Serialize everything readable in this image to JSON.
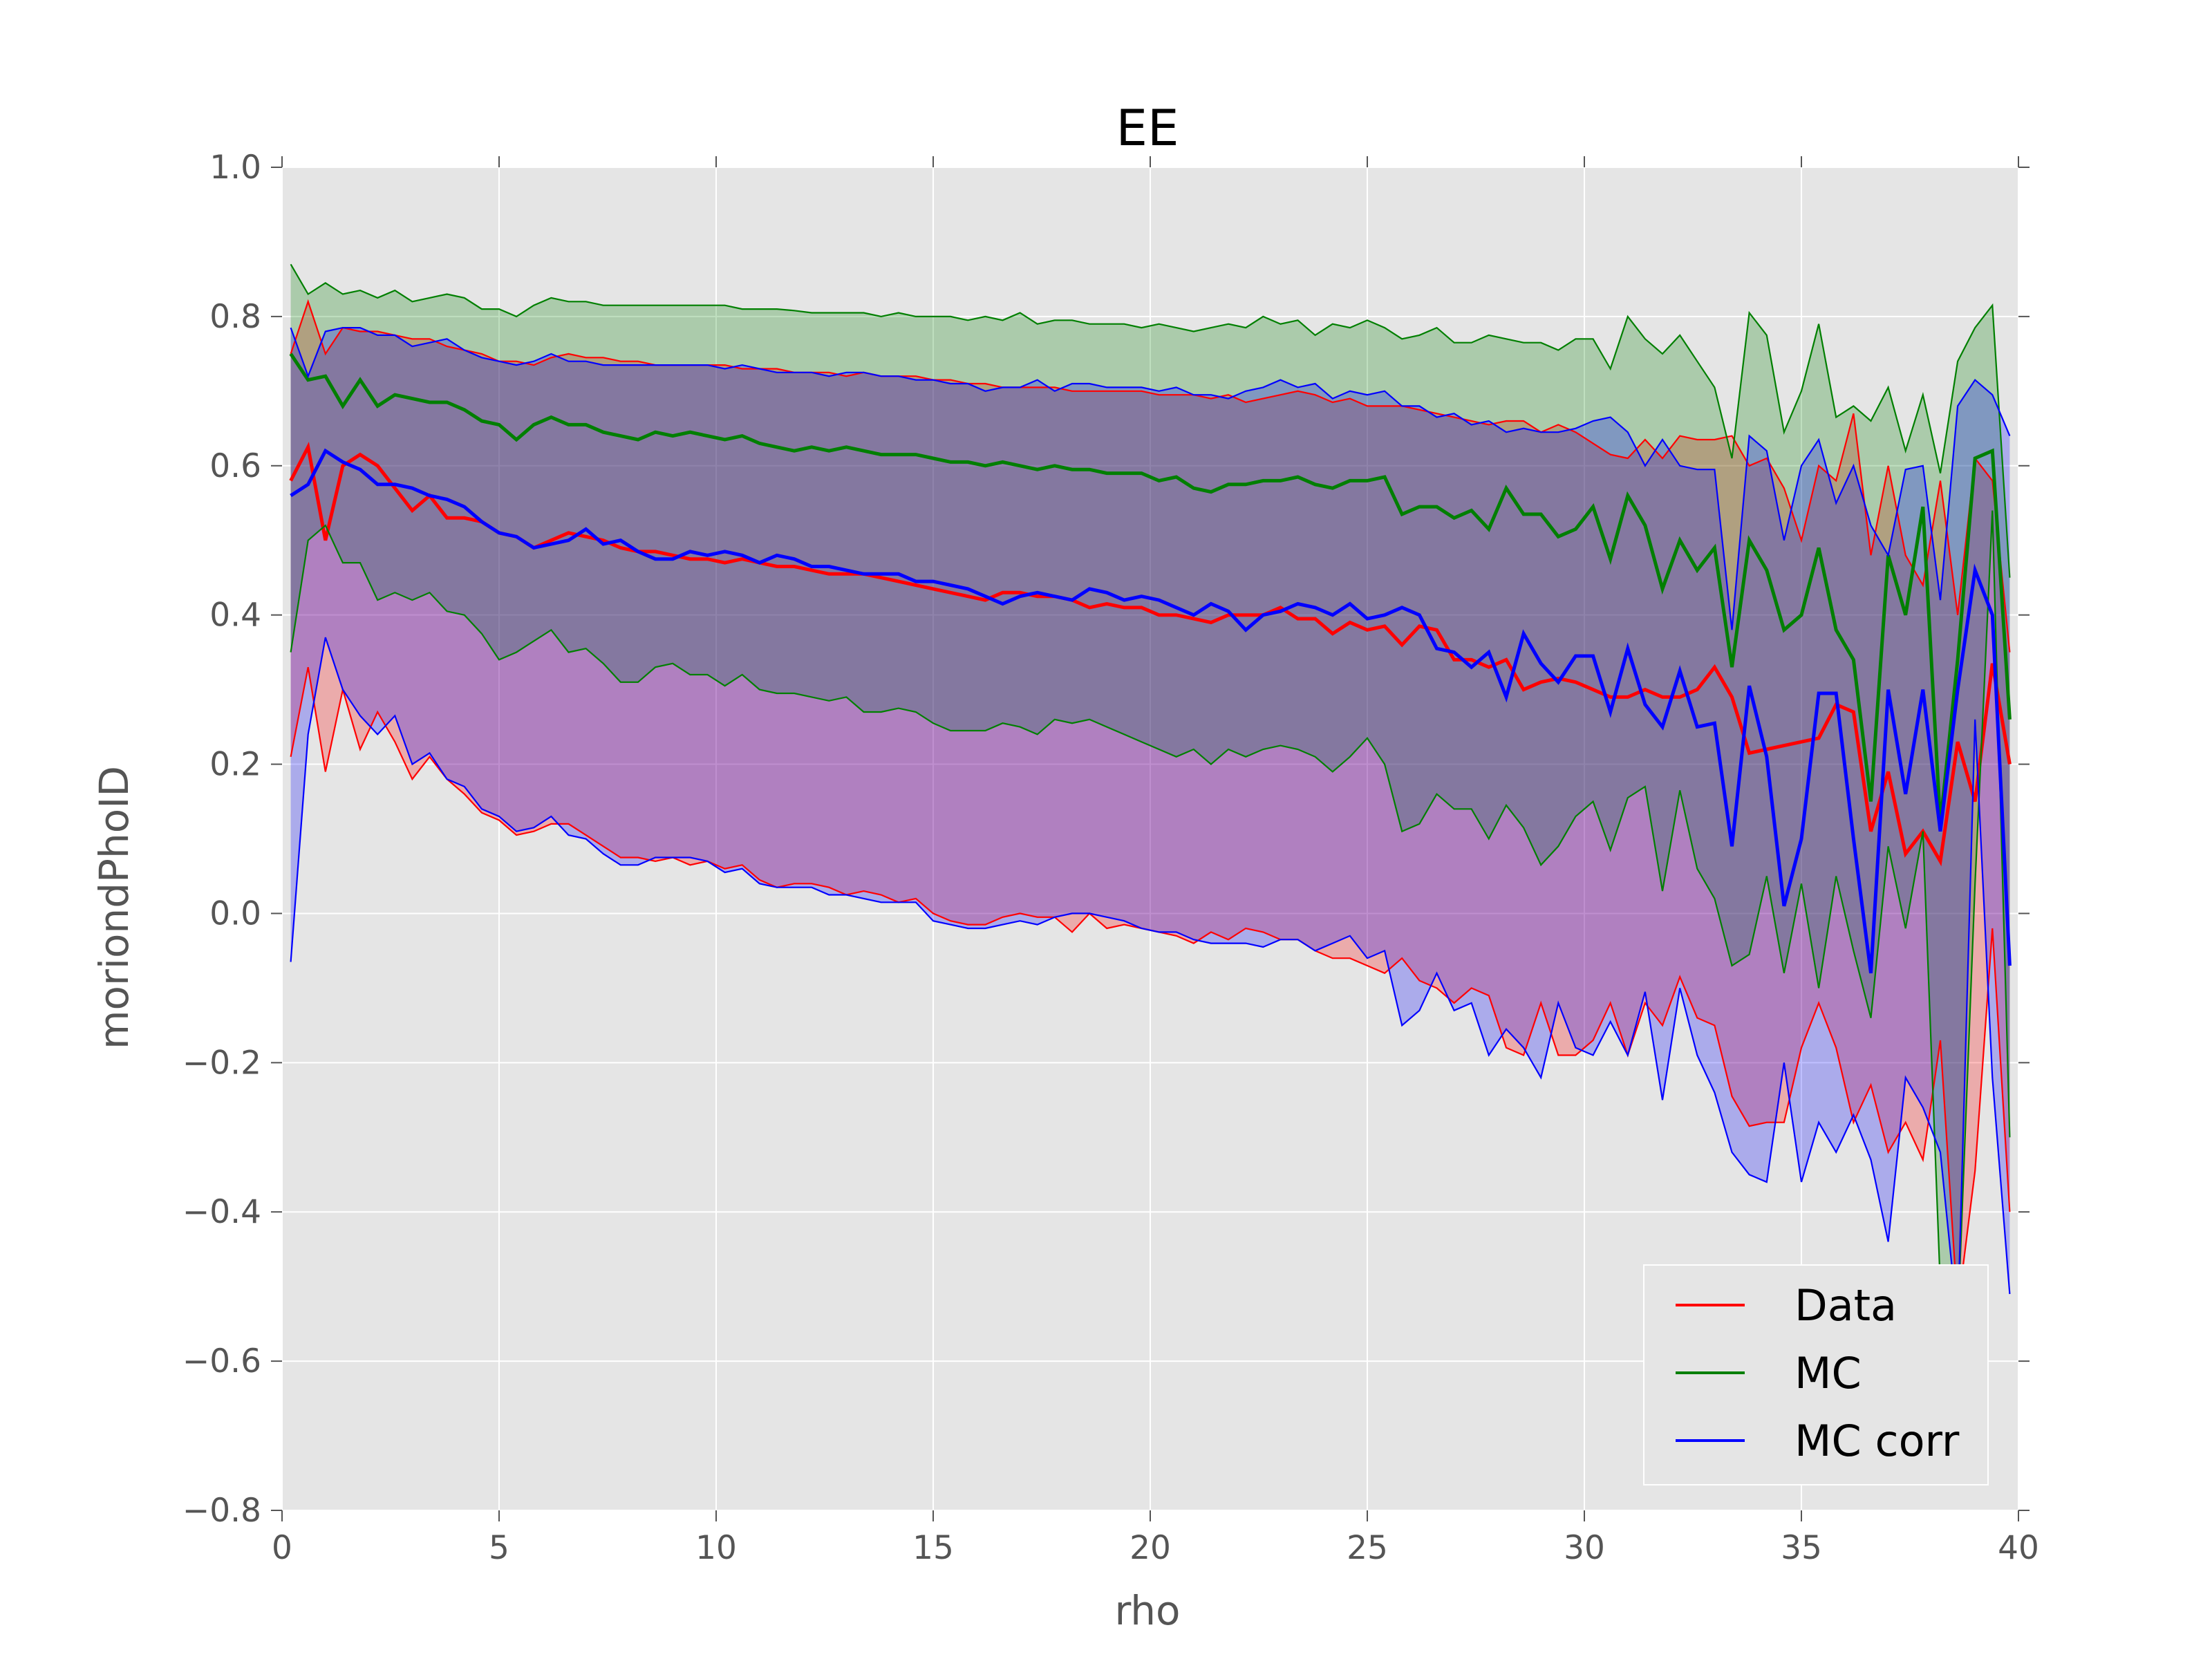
{
  "chart_data": {
    "type": "line",
    "title": "EE",
    "xlabel": "rho",
    "ylabel": "moriondPhoID",
    "xlim": [
      0,
      40
    ],
    "ylim": [
      -0.8,
      1.0
    ],
    "xticks": [
      "0",
      "5",
      "10",
      "15",
      "20",
      "25",
      "30",
      "35",
      "40"
    ],
    "yticks": [
      "−0.8",
      "−0.6",
      "−0.4",
      "−0.2",
      "0.0",
      "0.2",
      "0.4",
      "0.6",
      "0.8",
      "1.0"
    ],
    "grid": true,
    "legend_position": "lower-right",
    "colors": {
      "plot_bg": "#e5e5e5",
      "grid": "#ffffff",
      "Data": "#ff0000",
      "MC": "#007f00",
      "MC corr": "#0000ff"
    },
    "band_description": "Shaded bands span lower to upper quantile for each series",
    "x": [
      0.2,
      0.6,
      1.0,
      1.4,
      1.8,
      2.2,
      2.6,
      3.0,
      3.4,
      3.8,
      4.2,
      4.6,
      5.0,
      5.4,
      5.8,
      6.2,
      6.6,
      7.0,
      7.4,
      7.8,
      8.2,
      8.6,
      9.0,
      9.4,
      9.8,
      10.2,
      10.6,
      11.0,
      11.4,
      11.8,
      12.2,
      12.6,
      13.0,
      13.4,
      13.8,
      14.2,
      14.6,
      15.0,
      15.4,
      15.8,
      16.2,
      16.6,
      17.0,
      17.4,
      17.8,
      18.2,
      18.6,
      19.0,
      19.4,
      19.8,
      20.2,
      20.6,
      21.0,
      21.4,
      21.8,
      22.2,
      22.6,
      23.0,
      23.4,
      23.8,
      24.2,
      24.6,
      25.0,
      25.4,
      25.8,
      26.2,
      26.6,
      27.0,
      27.4,
      27.8,
      28.2,
      28.6,
      29.0,
      29.4,
      29.8,
      30.2,
      30.6,
      31.0,
      31.4,
      31.8,
      32.2,
      32.6,
      33.0,
      33.4,
      33.8,
      34.2,
      34.6,
      35.0,
      35.4,
      35.8,
      36.2,
      36.6,
      37.0,
      37.4,
      37.8,
      38.2,
      38.6,
      39.0,
      39.4,
      39.8
    ],
    "series": [
      {
        "name": "Data",
        "median": [
          0.58,
          0.625,
          0.5,
          0.6,
          0.615,
          0.6,
          0.57,
          0.54,
          0.56,
          0.53,
          0.53,
          0.525,
          0.51,
          0.505,
          0.49,
          0.5,
          0.51,
          0.505,
          0.5,
          0.49,
          0.485,
          0.485,
          0.48,
          0.475,
          0.475,
          0.47,
          0.475,
          0.47,
          0.465,
          0.465,
          0.46,
          0.455,
          0.455,
          0.455,
          0.45,
          0.445,
          0.44,
          0.435,
          0.43,
          0.425,
          0.42,
          0.43,
          0.43,
          0.425,
          0.425,
          0.42,
          0.41,
          0.415,
          0.41,
          0.41,
          0.4,
          0.4,
          0.395,
          0.39,
          0.4,
          0.4,
          0.4,
          0.41,
          0.395,
          0.395,
          0.375,
          0.39,
          0.38,
          0.385,
          0.36,
          0.385,
          0.38,
          0.34,
          0.34,
          0.33,
          0.34,
          0.3,
          0.31,
          0.315,
          0.31,
          0.3,
          0.29,
          0.29,
          0.3,
          0.29,
          0.29,
          0.3,
          0.33,
          0.29,
          0.215,
          0.22,
          0.225,
          0.23,
          0.235,
          0.28,
          0.27,
          0.11,
          0.19,
          0.08,
          0.11,
          0.07,
          0.23,
          0.15,
          0.335,
          0.2
        ],
        "upper": [
          0.75,
          0.82,
          0.75,
          0.785,
          0.78,
          0.78,
          0.775,
          0.77,
          0.77,
          0.76,
          0.755,
          0.75,
          0.74,
          0.74,
          0.735,
          0.745,
          0.75,
          0.745,
          0.745,
          0.74,
          0.74,
          0.735,
          0.735,
          0.735,
          0.735,
          0.735,
          0.73,
          0.73,
          0.73,
          0.725,
          0.725,
          0.725,
          0.72,
          0.725,
          0.72,
          0.72,
          0.72,
          0.715,
          0.715,
          0.71,
          0.71,
          0.705,
          0.705,
          0.705,
          0.705,
          0.7,
          0.7,
          0.7,
          0.7,
          0.7,
          0.695,
          0.695,
          0.695,
          0.69,
          0.695,
          0.685,
          0.69,
          0.695,
          0.7,
          0.695,
          0.685,
          0.69,
          0.68,
          0.68,
          0.68,
          0.675,
          0.67,
          0.665,
          0.66,
          0.655,
          0.66,
          0.66,
          0.645,
          0.655,
          0.645,
          0.63,
          0.615,
          0.61,
          0.635,
          0.61,
          0.64,
          0.635,
          0.635,
          0.64,
          0.6,
          0.61,
          0.57,
          0.5,
          0.6,
          0.58,
          0.67,
          0.48,
          0.6,
          0.48,
          0.44,
          0.58,
          0.4,
          0.61,
          0.58,
          0.35
        ],
        "lower": [
          0.21,
          0.33,
          0.19,
          0.3,
          0.22,
          0.27,
          0.23,
          0.18,
          0.21,
          0.18,
          0.16,
          0.135,
          0.125,
          0.105,
          0.11,
          0.12,
          0.12,
          0.105,
          0.09,
          0.075,
          0.075,
          0.07,
          0.075,
          0.065,
          0.07,
          0.06,
          0.065,
          0.045,
          0.035,
          0.04,
          0.04,
          0.035,
          0.025,
          0.03,
          0.025,
          0.015,
          0.02,
          0.0,
          -0.01,
          -0.015,
          -0.015,
          -0.005,
          0.0,
          -0.005,
          -0.005,
          -0.025,
          0.0,
          -0.02,
          -0.015,
          -0.02,
          -0.025,
          -0.03,
          -0.04,
          -0.025,
          -0.035,
          -0.02,
          -0.025,
          -0.035,
          -0.035,
          -0.05,
          -0.06,
          -0.06,
          -0.07,
          -0.08,
          -0.06,
          -0.09,
          -0.1,
          -0.12,
          -0.1,
          -0.11,
          -0.18,
          -0.19,
          -0.12,
          -0.19,
          -0.19,
          -0.17,
          -0.12,
          -0.19,
          -0.12,
          -0.15,
          -0.085,
          -0.14,
          -0.15,
          -0.245,
          -0.285,
          -0.28,
          -0.28,
          -0.18,
          -0.12,
          -0.18,
          -0.28,
          -0.23,
          -0.32,
          -0.28,
          -0.33,
          -0.17,
          -0.53,
          -0.345,
          -0.02,
          -0.4
        ]
      },
      {
        "name": "MC",
        "median": [
          0.75,
          0.715,
          0.72,
          0.68,
          0.715,
          0.68,
          0.695,
          0.69,
          0.685,
          0.685,
          0.675,
          0.66,
          0.655,
          0.635,
          0.655,
          0.665,
          0.655,
          0.655,
          0.645,
          0.64,
          0.635,
          0.645,
          0.64,
          0.645,
          0.64,
          0.635,
          0.64,
          0.63,
          0.625,
          0.62,
          0.625,
          0.62,
          0.625,
          0.62,
          0.615,
          0.615,
          0.615,
          0.61,
          0.605,
          0.605,
          0.6,
          0.605,
          0.6,
          0.595,
          0.6,
          0.595,
          0.595,
          0.59,
          0.59,
          0.59,
          0.58,
          0.585,
          0.57,
          0.565,
          0.575,
          0.575,
          0.58,
          0.58,
          0.585,
          0.575,
          0.57,
          0.58,
          0.58,
          0.585,
          0.535,
          0.545,
          0.545,
          0.53,
          0.54,
          0.515,
          0.57,
          0.535,
          0.535,
          0.505,
          0.515,
          0.545,
          0.475,
          0.56,
          0.52,
          0.435,
          0.5,
          0.46,
          0.49,
          0.33,
          0.5,
          0.46,
          0.38,
          0.4,
          0.49,
          0.38,
          0.34,
          0.15,
          0.48,
          0.4,
          0.545,
          0.12,
          0.34,
          0.61,
          0.62,
          0.26
        ],
        "upper": [
          0.87,
          0.83,
          0.845,
          0.83,
          0.835,
          0.825,
          0.835,
          0.82,
          0.825,
          0.83,
          0.825,
          0.81,
          0.81,
          0.8,
          0.815,
          0.825,
          0.82,
          0.82,
          0.815,
          0.815,
          0.815,
          0.815,
          0.815,
          0.815,
          0.815,
          0.815,
          0.81,
          0.81,
          0.81,
          0.808,
          0.805,
          0.805,
          0.805,
          0.805,
          0.8,
          0.805,
          0.8,
          0.8,
          0.8,
          0.795,
          0.8,
          0.795,
          0.805,
          0.79,
          0.795,
          0.795,
          0.79,
          0.79,
          0.79,
          0.785,
          0.79,
          0.785,
          0.78,
          0.785,
          0.79,
          0.785,
          0.8,
          0.79,
          0.795,
          0.775,
          0.79,
          0.785,
          0.795,
          0.785,
          0.77,
          0.775,
          0.785,
          0.765,
          0.765,
          0.775,
          0.77,
          0.765,
          0.765,
          0.755,
          0.77,
          0.77,
          0.73,
          0.8,
          0.77,
          0.75,
          0.775,
          0.74,
          0.705,
          0.61,
          0.805,
          0.775,
          0.645,
          0.7,
          0.79,
          0.665,
          0.68,
          0.66,
          0.705,
          0.62,
          0.695,
          0.59,
          0.74,
          0.785,
          0.815,
          0.45
        ],
        "lower": [
          0.35,
          0.5,
          0.52,
          0.47,
          0.47,
          0.42,
          0.43,
          0.42,
          0.43,
          0.405,
          0.4,
          0.375,
          0.34,
          0.35,
          0.365,
          0.38,
          0.35,
          0.355,
          0.335,
          0.31,
          0.31,
          0.33,
          0.335,
          0.32,
          0.32,
          0.305,
          0.32,
          0.3,
          0.295,
          0.295,
          0.29,
          0.285,
          0.29,
          0.27,
          0.27,
          0.275,
          0.27,
          0.255,
          0.245,
          0.245,
          0.245,
          0.255,
          0.25,
          0.24,
          0.26,
          0.255,
          0.26,
          0.25,
          0.24,
          0.23,
          0.22,
          0.21,
          0.22,
          0.2,
          0.22,
          0.21,
          0.22,
          0.225,
          0.22,
          0.21,
          0.19,
          0.21,
          0.235,
          0.2,
          0.11,
          0.12,
          0.16,
          0.14,
          0.14,
          0.1,
          0.145,
          0.115,
          0.065,
          0.09,
          0.13,
          0.15,
          0.085,
          0.155,
          0.17,
          0.03,
          0.165,
          0.06,
          0.02,
          -0.07,
          -0.055,
          0.05,
          -0.08,
          0.04,
          -0.1,
          0.05,
          -0.05,
          -0.14,
          0.09,
          -0.02,
          0.11,
          -0.5,
          -0.55,
          0.04,
          0.54,
          -0.3
        ]
      },
      {
        "name": "MC corr",
        "median": [
          0.56,
          0.575,
          0.62,
          0.605,
          0.595,
          0.575,
          0.575,
          0.57,
          0.56,
          0.555,
          0.545,
          0.525,
          0.51,
          0.505,
          0.49,
          0.495,
          0.5,
          0.515,
          0.495,
          0.5,
          0.485,
          0.475,
          0.475,
          0.485,
          0.48,
          0.485,
          0.48,
          0.47,
          0.48,
          0.475,
          0.465,
          0.465,
          0.46,
          0.455,
          0.455,
          0.455,
          0.445,
          0.445,
          0.44,
          0.435,
          0.425,
          0.415,
          0.425,
          0.43,
          0.425,
          0.42,
          0.435,
          0.43,
          0.42,
          0.425,
          0.42,
          0.41,
          0.4,
          0.415,
          0.405,
          0.38,
          0.4,
          0.405,
          0.415,
          0.41,
          0.4,
          0.415,
          0.395,
          0.4,
          0.41,
          0.4,
          0.355,
          0.35,
          0.33,
          0.35,
          0.29,
          0.375,
          0.335,
          0.31,
          0.345,
          0.345,
          0.27,
          0.355,
          0.28,
          0.25,
          0.325,
          0.25,
          0.255,
          0.09,
          0.305,
          0.21,
          0.01,
          0.1,
          0.295,
          0.295,
          0.1,
          -0.08,
          0.3,
          0.16,
          0.3,
          0.11,
          0.3,
          0.46,
          0.4,
          -0.07
        ],
        "upper": [
          0.785,
          0.72,
          0.78,
          0.785,
          0.785,
          0.775,
          0.775,
          0.76,
          0.765,
          0.77,
          0.755,
          0.745,
          0.74,
          0.735,
          0.74,
          0.75,
          0.74,
          0.74,
          0.735,
          0.735,
          0.735,
          0.735,
          0.735,
          0.735,
          0.735,
          0.73,
          0.735,
          0.73,
          0.725,
          0.725,
          0.725,
          0.72,
          0.725,
          0.725,
          0.72,
          0.72,
          0.715,
          0.715,
          0.71,
          0.71,
          0.7,
          0.705,
          0.705,
          0.715,
          0.7,
          0.71,
          0.71,
          0.705,
          0.705,
          0.705,
          0.7,
          0.705,
          0.695,
          0.695,
          0.69,
          0.7,
          0.705,
          0.715,
          0.705,
          0.71,
          0.69,
          0.7,
          0.695,
          0.7,
          0.68,
          0.68,
          0.665,
          0.67,
          0.655,
          0.66,
          0.645,
          0.65,
          0.645,
          0.645,
          0.65,
          0.66,
          0.665,
          0.645,
          0.6,
          0.635,
          0.6,
          0.595,
          0.595,
          0.38,
          0.64,
          0.62,
          0.5,
          0.6,
          0.635,
          0.55,
          0.6,
          0.52,
          0.48,
          0.595,
          0.6,
          0.42,
          0.68,
          0.715,
          0.695,
          0.64
        ],
        "lower": [
          -0.065,
          0.24,
          0.37,
          0.3,
          0.265,
          0.24,
          0.265,
          0.2,
          0.215,
          0.18,
          0.17,
          0.14,
          0.13,
          0.11,
          0.115,
          0.13,
          0.105,
          0.1,
          0.08,
          0.065,
          0.065,
          0.075,
          0.075,
          0.075,
          0.07,
          0.055,
          0.06,
          0.04,
          0.035,
          0.035,
          0.035,
          0.025,
          0.025,
          0.02,
          0.015,
          0.015,
          0.015,
          -0.01,
          -0.015,
          -0.02,
          -0.02,
          -0.015,
          -0.01,
          -0.015,
          -0.005,
          0.0,
          0.0,
          -0.005,
          -0.01,
          -0.02,
          -0.025,
          -0.025,
          -0.035,
          -0.04,
          -0.04,
          -0.04,
          -0.045,
          -0.035,
          -0.035,
          -0.05,
          -0.04,
          -0.03,
          -0.06,
          -0.05,
          -0.15,
          -0.13,
          -0.08,
          -0.13,
          -0.12,
          -0.19,
          -0.155,
          -0.18,
          -0.22,
          -0.12,
          -0.18,
          -0.19,
          -0.145,
          -0.19,
          -0.105,
          -0.25,
          -0.1,
          -0.19,
          -0.24,
          -0.32,
          -0.35,
          -0.36,
          -0.2,
          -0.36,
          -0.28,
          -0.32,
          -0.27,
          -0.33,
          -0.44,
          -0.22,
          -0.26,
          -0.32,
          -0.55,
          0.26,
          -0.22,
          -0.51
        ]
      }
    ]
  }
}
